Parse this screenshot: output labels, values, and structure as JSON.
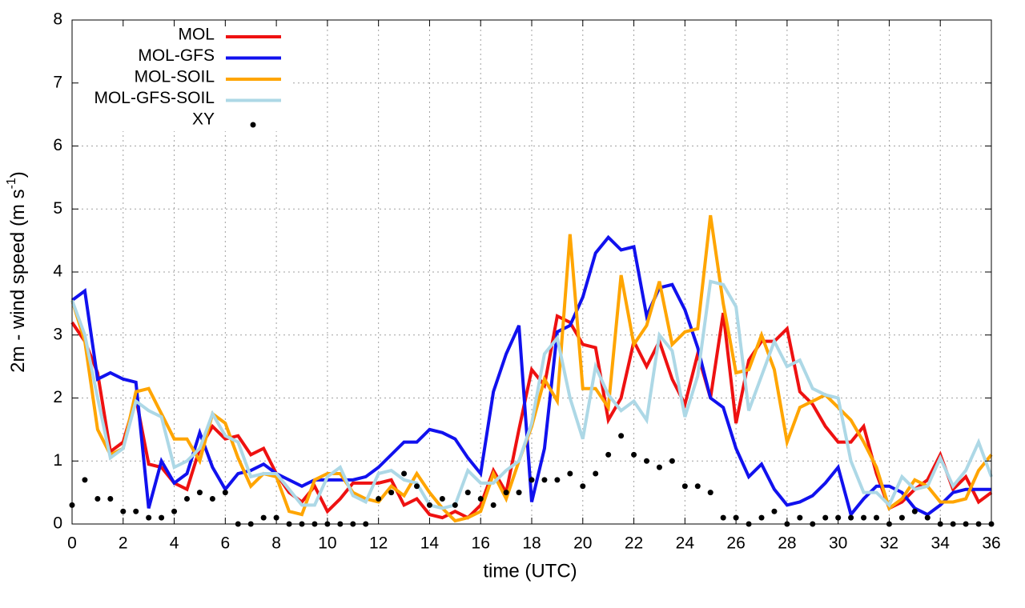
{
  "chart_data": {
    "type": "line",
    "xlabel": "time (UTC)",
    "ylabel": "2m - wind speed  (m s",
    "ylabel_sup": "-1",
    "ylabel_end": ")",
    "x": [
      0,
      0.5,
      1,
      1.5,
      2,
      2.5,
      3,
      3.5,
      4,
      4.5,
      5,
      5.5,
      6,
      6.5,
      7,
      7.5,
      8,
      8.5,
      9,
      9.5,
      10,
      10.5,
      11,
      11.5,
      12,
      12.5,
      13,
      13.5,
      14,
      14.5,
      15,
      15.5,
      16,
      16.5,
      17,
      17.5,
      18,
      18.5,
      19,
      19.5,
      20,
      20.5,
      21,
      21.5,
      22,
      22.5,
      23,
      23.5,
      24,
      24.5,
      25,
      25.5,
      26,
      26.5,
      27,
      27.5,
      28,
      28.5,
      29,
      29.5,
      30,
      30.5,
      31,
      31.5,
      32,
      32.5,
      33,
      33.5,
      34,
      34.5,
      35,
      35.5,
      36
    ],
    "series": [
      {
        "name": "MOL",
        "color": "#ee1111",
        "style": "line",
        "values": [
          3.2,
          2.9,
          2.4,
          1.15,
          1.3,
          2.0,
          0.95,
          0.9,
          0.65,
          0.55,
          1.2,
          1.55,
          1.35,
          1.4,
          1.1,
          1.2,
          0.8,
          0.5,
          0.35,
          0.6,
          0.2,
          0.4,
          0.65,
          0.65,
          0.65,
          0.7,
          0.3,
          0.4,
          0.15,
          0.1,
          0.2,
          0.1,
          0.3,
          0.85,
          0.5,
          1.5,
          2.45,
          2.2,
          3.3,
          3.2,
          2.85,
          2.8,
          1.65,
          2.0,
          2.9,
          2.5,
          2.9,
          2.3,
          1.9,
          2.7,
          2.0,
          3.35,
          1.6,
          2.6,
          2.9,
          2.9,
          3.1,
          2.1,
          1.9,
          1.55,
          1.3,
          1.3,
          1.55,
          0.8,
          0.25,
          0.35,
          0.55,
          0.7,
          1.1,
          0.55,
          0.75,
          0.35,
          0.5
        ]
      },
      {
        "name": "MOL-GFS",
        "color": "#1111ee",
        "style": "line",
        "values": [
          3.55,
          3.7,
          2.3,
          2.4,
          2.3,
          2.25,
          0.25,
          1.0,
          0.65,
          0.8,
          1.45,
          0.9,
          0.55,
          0.8,
          0.85,
          0.95,
          0.8,
          0.7,
          0.6,
          0.7,
          0.7,
          0.7,
          0.7,
          0.75,
          0.9,
          1.1,
          1.3,
          1.3,
          1.5,
          1.45,
          1.35,
          1.05,
          0.8,
          2.1,
          2.7,
          3.15,
          0.35,
          1.2,
          3.05,
          3.15,
          3.6,
          4.3,
          4.55,
          4.35,
          4.4,
          3.3,
          3.75,
          3.8,
          3.4,
          2.8,
          2.0,
          1.85,
          1.2,
          0.75,
          0.95,
          0.55,
          0.3,
          0.35,
          0.45,
          0.65,
          0.9,
          0.15,
          0.4,
          0.6,
          0.6,
          0.5,
          0.25,
          0.15,
          0.3,
          0.5,
          0.55,
          0.55,
          0.55
        ]
      },
      {
        "name": "MOL-SOIL",
        "color": "#ffa500",
        "style": "line",
        "values": [
          3.55,
          2.9,
          1.5,
          1.1,
          1.2,
          2.1,
          2.15,
          1.75,
          1.35,
          1.35,
          1.0,
          1.75,
          1.6,
          1.05,
          0.6,
          0.8,
          0.75,
          0.2,
          0.15,
          0.7,
          0.8,
          0.8,
          0.5,
          0.4,
          0.35,
          0.6,
          0.45,
          0.8,
          0.5,
          0.25,
          0.05,
          0.1,
          0.2,
          0.8,
          0.4,
          1.0,
          1.55,
          2.3,
          1.95,
          4.6,
          2.15,
          2.15,
          1.85,
          3.95,
          2.85,
          3.15,
          3.85,
          2.85,
          3.05,
          3.1,
          4.9,
          3.5,
          2.4,
          2.45,
          3.0,
          2.45,
          1.3,
          1.85,
          1.95,
          2.05,
          1.85,
          1.65,
          1.3,
          0.9,
          0.25,
          0.4,
          0.7,
          0.6,
          0.35,
          0.35,
          0.4,
          0.85,
          1.1
        ]
      },
      {
        "name": "MOL-GFS-SOIL",
        "color": "#add8e6",
        "style": "line",
        "values": [
          3.55,
          3.0,
          2.0,
          1.05,
          1.2,
          1.95,
          1.8,
          1.7,
          0.9,
          1.0,
          1.2,
          1.75,
          1.4,
          1.3,
          0.75,
          0.8,
          0.8,
          0.55,
          0.3,
          0.3,
          0.75,
          0.9,
          0.45,
          0.35,
          0.8,
          0.85,
          0.7,
          0.65,
          0.3,
          0.25,
          0.3,
          0.85,
          0.65,
          0.65,
          0.85,
          1.0,
          1.6,
          2.7,
          2.95,
          2.0,
          1.35,
          2.5,
          2.05,
          1.8,
          1.95,
          1.65,
          3.0,
          2.75,
          1.7,
          2.35,
          3.85,
          3.8,
          3.45,
          1.8,
          2.35,
          2.9,
          2.5,
          2.6,
          2.15,
          2.05,
          2.0,
          1.0,
          0.5,
          0.5,
          0.3,
          0.75,
          0.55,
          0.6,
          1.05,
          0.6,
          0.85,
          1.3,
          0.75
        ]
      },
      {
        "name": "XY",
        "color": "#000000",
        "style": "points",
        "values": [
          0.3,
          0.7,
          0.4,
          0.4,
          0.2,
          0.2,
          0.1,
          0.1,
          0.2,
          0.4,
          0.5,
          0.4,
          0.5,
          0,
          0,
          0.1,
          0.1,
          0,
          0,
          0,
          0,
          0,
          0,
          0,
          0.4,
          0.5,
          0.8,
          0.6,
          0.3,
          0.4,
          0.3,
          0.5,
          0.4,
          0.3,
          0.5,
          0.5,
          0.7,
          0.7,
          0.7,
          0.8,
          0.6,
          0.8,
          1.1,
          1.4,
          1.1,
          1.0,
          0.9,
          1.0,
          0.6,
          0.6,
          0.5,
          0.1,
          0.1,
          0,
          0.1,
          0.2,
          0,
          0.1,
          0,
          0.1,
          0.1,
          0.1,
          0.1,
          0.1,
          0,
          0.1,
          0.2,
          0.1,
          0,
          0,
          0,
          0,
          0
        ]
      }
    ],
    "xlim": [
      0,
      36
    ],
    "xticks": [
      0,
      2,
      4,
      6,
      8,
      10,
      12,
      14,
      16,
      18,
      20,
      22,
      24,
      26,
      28,
      30,
      32,
      34,
      36
    ],
    "ylim": [
      0,
      8
    ],
    "yticks": [
      0,
      1,
      2,
      3,
      4,
      5,
      6,
      7,
      8
    ],
    "grid": true,
    "legend": "top-left"
  }
}
